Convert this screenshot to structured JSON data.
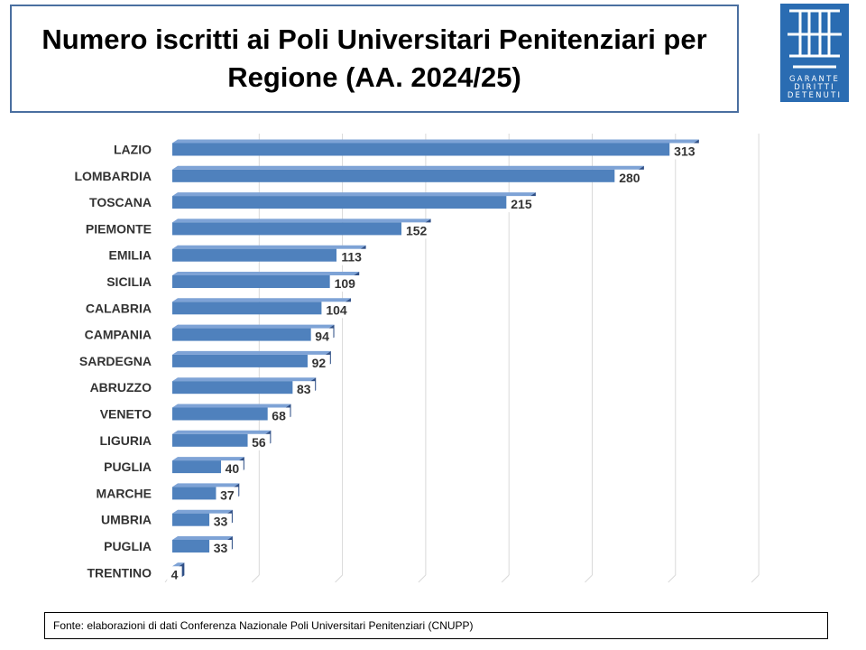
{
  "logo": {
    "lines": [
      "GARANTE",
      "DIRITTI",
      "DETENUTI"
    ],
    "color": "#2a6cb2"
  },
  "source": "Fonte: elaborazioni di dati  Conferenza Nazionale Poli Universitari Penitenziari (CNUPP)",
  "chart_data": {
    "type": "bar",
    "orientation": "horizontal",
    "style": "3d",
    "title": "Numero iscritti ai Poli Universitari Penitenziari per Regione (AA. 2024/25)",
    "categories": [
      "LAZIO",
      "LOMBARDIA",
      "TOSCANA",
      "PIEMONTE",
      "EMILIA",
      "SICILIA",
      "CALABRIA",
      "CAMPANIA",
      "SARDEGNA",
      "ABRUZZO",
      "VENETO",
      "LIGURIA",
      "PUGLIA",
      "MARCHE",
      "UMBRIA",
      "PUGLIA",
      "TRENTINO"
    ],
    "values": [
      313,
      280,
      215,
      152,
      113,
      109,
      104,
      94,
      92,
      83,
      68,
      56,
      40,
      37,
      33,
      33,
      4
    ],
    "xlim": [
      0,
      350
    ],
    "grid": true,
    "legend": "none",
    "bar_color": "#4f81bd"
  }
}
